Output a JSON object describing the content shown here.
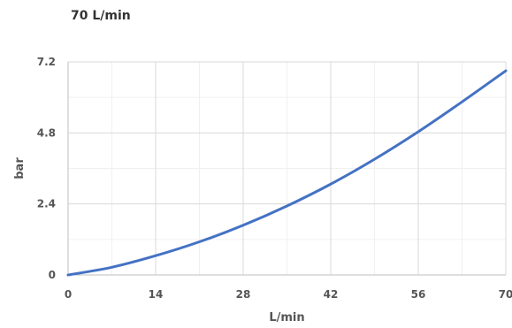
{
  "chart_data": {
    "type": "line",
    "title": "70 L/min",
    "xlabel": "L/min",
    "ylabel": "bar",
    "xlim": [
      0,
      70
    ],
    "ylim": [
      0,
      7.2
    ],
    "x_ticks": [
      0,
      14,
      28,
      42,
      56,
      70
    ],
    "y_ticks": [
      0,
      2.4,
      4.8,
      7.2
    ],
    "x_tick_labels": [
      "0",
      "14",
      "28",
      "42",
      "56",
      "70"
    ],
    "y_tick_labels": [
      "0",
      "2.4",
      "4.8",
      "7.2"
    ],
    "grid": true,
    "minor_grid": true,
    "series": [
      {
        "color": "#4472C4",
        "x": [
          0,
          7,
          14,
          21,
          28,
          35,
          42,
          49,
          56,
          63,
          70
        ],
        "y": [
          0,
          0.26,
          0.65,
          1.12,
          1.68,
          2.33,
          3.07,
          3.91,
          4.84,
          5.85,
          6.9
        ]
      }
    ]
  }
}
